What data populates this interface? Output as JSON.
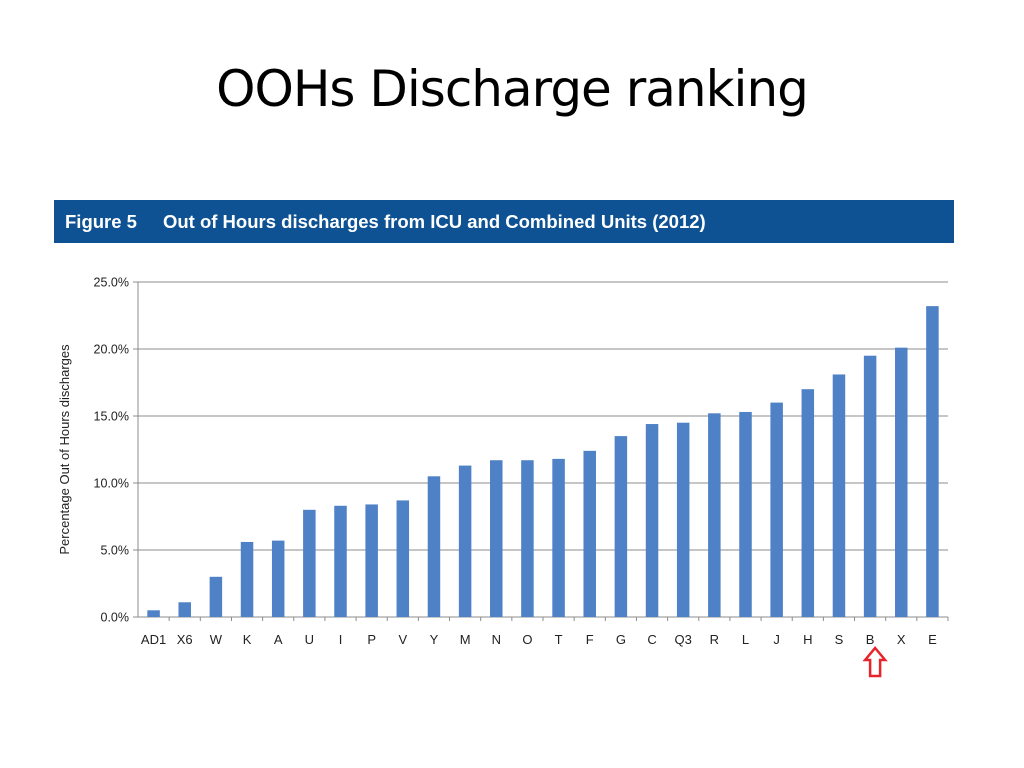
{
  "slide": {
    "title": "OOHs Discharge ranking"
  },
  "figure": {
    "number_label": "Figure 5",
    "caption": "Out of Hours discharges from ICU and Combined Units (2012)"
  },
  "colors": {
    "banner": "#0f5293",
    "bar": "#4f81c7",
    "marker": "#e8242b"
  },
  "chart_data": {
    "type": "bar",
    "categories": [
      "AD1",
      "X6",
      "W",
      "K",
      "A",
      "U",
      "I",
      "P",
      "V",
      "Y",
      "M",
      "N",
      "O",
      "T",
      "F",
      "G",
      "C",
      "Q3",
      "R",
      "L",
      "J",
      "H",
      "S",
      "B",
      "X",
      "E"
    ],
    "values": [
      0.5,
      1.1,
      3.0,
      5.6,
      5.7,
      8.0,
      8.3,
      8.4,
      8.7,
      10.5,
      11.3,
      11.7,
      11.7,
      11.8,
      12.4,
      13.5,
      14.4,
      14.5,
      15.2,
      15.3,
      16.0,
      17.0,
      18.1,
      19.5,
      20.1,
      23.2
    ],
    "title": "Out of Hours discharges from ICU and Combined Units (2012)",
    "xlabel": "",
    "ylabel": "Percentage Out of Hours discharges",
    "ylim": [
      0,
      25
    ],
    "yticks": [
      "0.0%",
      "5.0%",
      "10.0%",
      "15.0%",
      "20.0%",
      "25.0%"
    ],
    "grid": true,
    "legend": "none",
    "highlighted_category": "B",
    "highlight_marker": "red up-arrow below category"
  }
}
